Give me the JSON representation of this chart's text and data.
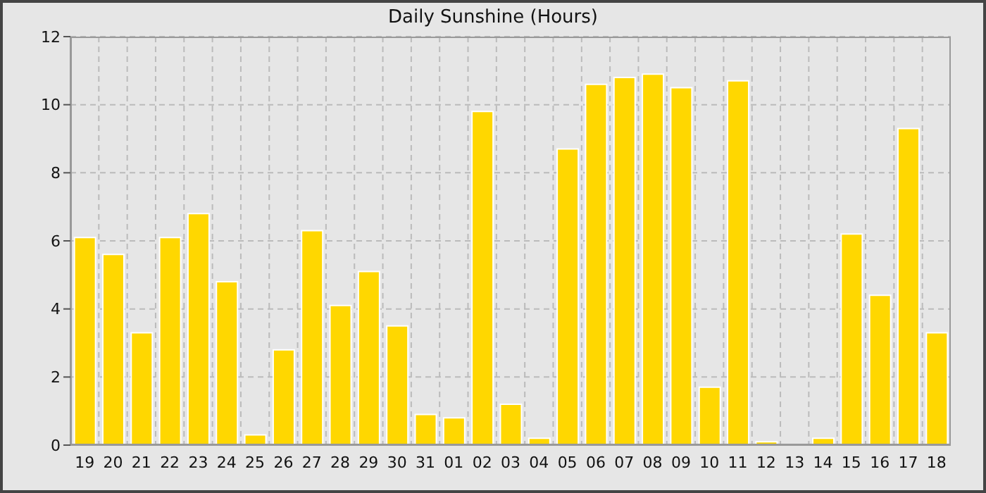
{
  "chart_data": {
    "type": "bar",
    "title": "Daily Sunshine (Hours)",
    "categories": [
      "19",
      "20",
      "21",
      "22",
      "23",
      "24",
      "25",
      "26",
      "27",
      "28",
      "29",
      "30",
      "31",
      "01",
      "02",
      "03",
      "04",
      "05",
      "06",
      "07",
      "08",
      "09",
      "10",
      "11",
      "12",
      "13",
      "14",
      "15",
      "16",
      "17",
      "18"
    ],
    "values": [
      6.1,
      5.6,
      3.3,
      6.1,
      6.8,
      4.8,
      0.3,
      2.8,
      6.3,
      4.1,
      5.1,
      3.5,
      0.9,
      0.8,
      9.8,
      1.2,
      0.2,
      8.7,
      10.6,
      10.8,
      10.9,
      10.5,
      1.7,
      10.7,
      0.1,
      0,
      0.2,
      6.2,
      4.4,
      9.3,
      3.3
    ],
    "color": "#ffd700",
    "ylim": [
      0,
      12
    ],
    "yticks": [
      0,
      2,
      4,
      6,
      8,
      10,
      12
    ],
    "grid": true
  }
}
